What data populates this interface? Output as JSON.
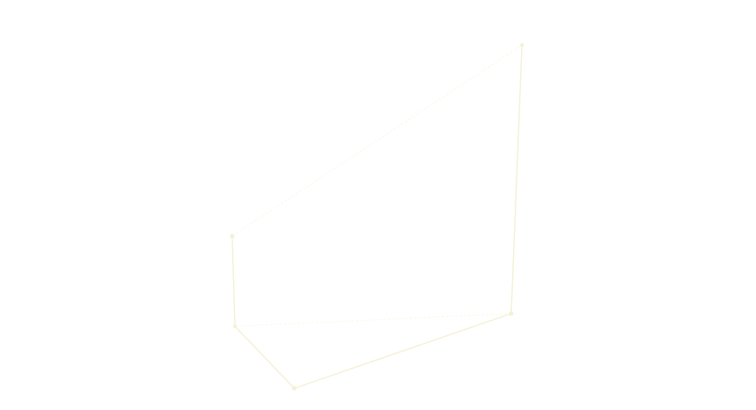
{
  "colors": {
    "background": "#ffffff",
    "edge": "#f4f1d6",
    "edge_soft": "#faf8e8",
    "label": "#f1edd0"
  },
  "title": {
    "text": "",
    "subtitle": ""
  },
  "dimensions": {
    "front_bottom": "",
    "right_bottom": "",
    "depth": "",
    "height": ""
  }
}
